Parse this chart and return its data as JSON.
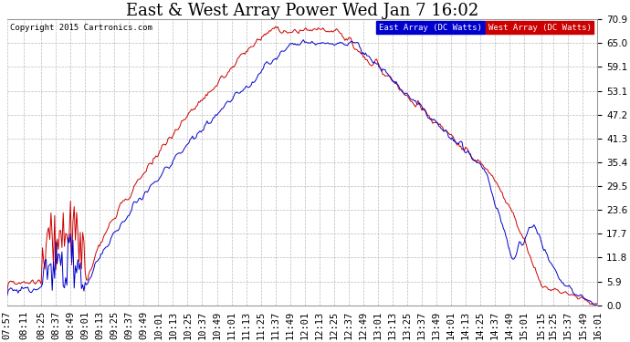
{
  "title": "East & West Array Power Wed Jan 7 16:02",
  "copyright": "Copyright 2015 Cartronics.com",
  "legend_east": "East Array (DC Watts)",
  "legend_west": "West Array (DC Watts)",
  "east_color": "#0000cc",
  "west_color": "#cc0000",
  "legend_east_bg": "#0000cc",
  "legend_west_bg": "#cc0000",
  "ylim": [
    0.0,
    70.9
  ],
  "yticks": [
    0.0,
    5.9,
    11.8,
    17.7,
    23.6,
    29.5,
    35.4,
    41.3,
    47.2,
    53.1,
    59.1,
    65.0,
    70.9
  ],
  "background_color": "#ffffff",
  "grid_color": "#bbbbbb",
  "title_fontsize": 13,
  "tick_fontsize": 7.5
}
